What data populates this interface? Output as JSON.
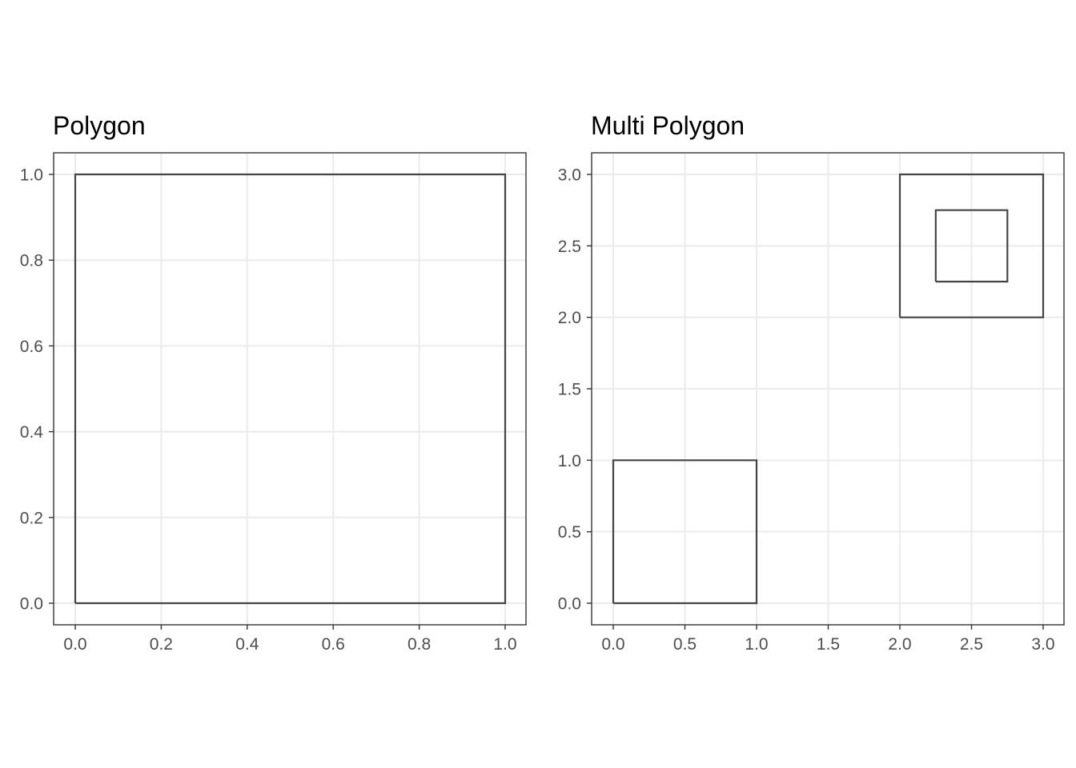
{
  "chart_data": [
    {
      "type": "polygon",
      "title": "Polygon",
      "xlabel": "",
      "ylabel": "",
      "xlim": [
        0,
        1
      ],
      "ylim": [
        0,
        1
      ],
      "x_ticks": [
        0,
        0.2,
        0.4,
        0.6,
        0.8,
        1.0
      ],
      "x_tick_labels": [
        "0.0",
        "0.2",
        "0.4",
        "0.6",
        "0.8",
        "1.0"
      ],
      "y_ticks": [
        0,
        0.2,
        0.4,
        0.6,
        0.8,
        1.0
      ],
      "y_tick_labels": [
        "0.0",
        "0.2",
        "0.4",
        "0.6",
        "0.8",
        "1.0"
      ],
      "grid": true,
      "stroke_color": "#444444",
      "polygons": [
        {
          "name": "",
          "points": [
            [
              0,
              0
            ],
            [
              1,
              0
            ],
            [
              1,
              1
            ],
            [
              0,
              1
            ],
            [
              0,
              0
            ]
          ]
        }
      ]
    },
    {
      "type": "polygon",
      "title": "Multi Polygon",
      "xlabel": "",
      "ylabel": "",
      "xlim": [
        0,
        3
      ],
      "ylim": [
        0,
        3
      ],
      "x_ticks": [
        0,
        0.5,
        1.0,
        1.5,
        2.0,
        2.5,
        3.0
      ],
      "x_tick_labels": [
        "0.0",
        "0.5",
        "1.0",
        "1.5",
        "2.0",
        "2.5",
        "3.0"
      ],
      "y_ticks": [
        0,
        0.5,
        1.0,
        1.5,
        2.0,
        2.5,
        3.0
      ],
      "y_tick_labels": [
        "0.0",
        "0.5",
        "1.0",
        "1.5",
        "2.0",
        "2.5",
        "3.0"
      ],
      "grid": true,
      "stroke_color": "#444444",
      "polygons": [
        {
          "name": "",
          "points": [
            [
              0,
              0
            ],
            [
              1,
              0
            ],
            [
              1,
              1
            ],
            [
              0,
              1
            ],
            [
              0,
              0
            ]
          ]
        },
        {
          "name": "",
          "points": [
            [
              2,
              2
            ],
            [
              3,
              2
            ],
            [
              3,
              3
            ],
            [
              2,
              3
            ],
            [
              2,
              2
            ]
          ]
        },
        {
          "name": "",
          "points": [
            [
              2.25,
              2.25
            ],
            [
              2.75,
              2.25
            ],
            [
              2.75,
              2.75
            ],
            [
              2.25,
              2.75
            ],
            [
              2.25,
              2.25
            ]
          ]
        }
      ]
    }
  ]
}
